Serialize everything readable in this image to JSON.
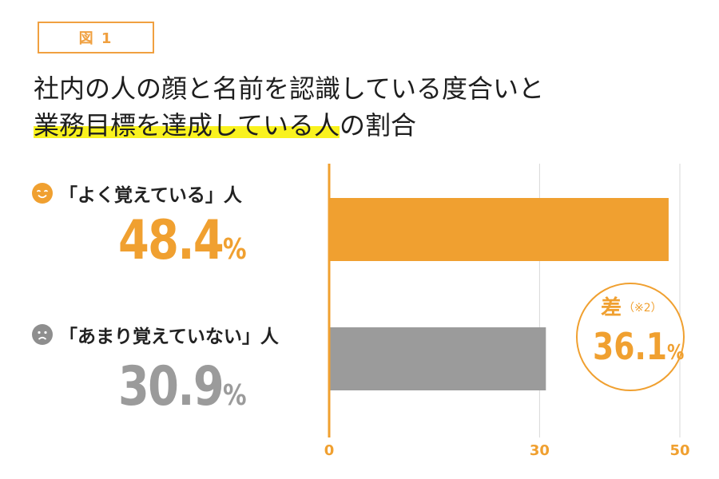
{
  "figure_label": "図 1",
  "title": {
    "line1": "社内の人の顔と名前を認識している度合いと",
    "line2_highlight": "業務目標を達成している人",
    "line2_rest": "の割合"
  },
  "rows": [
    {
      "label": "「よく覚えている」人",
      "value_text": "48.4",
      "unit": "%",
      "icon": "smile-face-icon",
      "color": "#f0a030"
    },
    {
      "label": "「あまり覚えていない」人",
      "value_text": "30.9",
      "unit": "%",
      "icon": "sad-face-icon",
      "color": "#9b9b9b"
    }
  ],
  "difference": {
    "label": "差",
    "note": "（※2）",
    "value_text": "36.1",
    "unit": "%"
  },
  "colors": {
    "accent": "#f0a030",
    "gray": "#9b9b9b",
    "grid": "#d8d8d8",
    "highlight": "#f9f21e"
  },
  "chart_data": {
    "type": "bar",
    "orientation": "horizontal",
    "categories": [
      "「よく覚えている」人",
      "「あまり覚えていない」人"
    ],
    "values": [
      48.4,
      30.9
    ],
    "xlim": [
      0,
      50
    ],
    "x_ticks": [
      "0",
      "30",
      "50"
    ],
    "grid": true
  }
}
